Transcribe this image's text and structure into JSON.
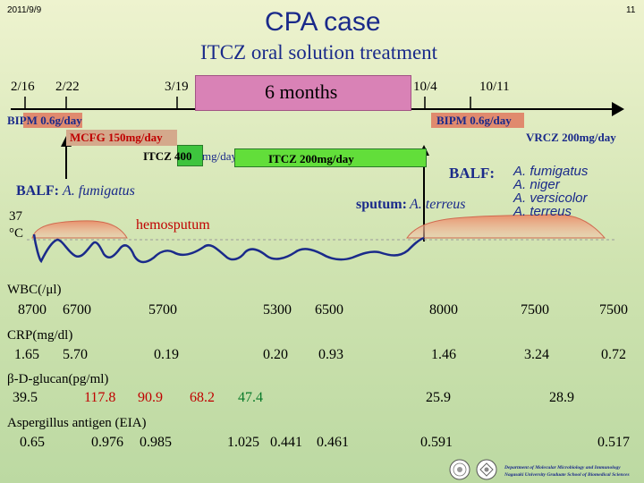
{
  "header": {
    "date": "2011/9/9",
    "page_number": "11",
    "title": "CPA case",
    "subtitle": "ITCZ oral solution treatment"
  },
  "timeline": {
    "dates": [
      "2/16",
      "2/22",
      "3/19",
      "10/4",
      "10/11"
    ],
    "span_label": "6 months"
  },
  "treatments": {
    "bipm_first": "BIPM 0.6g/day",
    "bipm_second": "BIPM 0.6g/day",
    "mcfg": "MCFG 150mg/day",
    "vrcz": "VRCZ 200mg/day",
    "itcz_400_a": "ITCZ 400",
    "itcz_400_b": "mg/day",
    "itcz_200": "ITCZ 200mg/day"
  },
  "findings": {
    "balf1_prefix": "BALF: ",
    "balf1_organism": "A. fumigatus",
    "sputum_prefix": "sputum:",
    "sputum_organism": "A. terreus",
    "balf2_prefix": "BALF:",
    "balf2_organisms": [
      "A. fumigatus",
      "A. niger",
      "A. versicolor",
      "A. terreus"
    ],
    "hemosputum": "hemosputum",
    "temp_value": "37",
    "temp_unit": "°C"
  },
  "labs": {
    "wbc": {
      "label": "WBC(/μl)",
      "values": [
        "8700",
        "6700",
        "5700",
        "5300",
        "6500",
        "8000",
        "7500",
        "7500"
      ]
    },
    "crp": {
      "label": "CRP(mg/dl)",
      "values": [
        "1.65",
        "5.70",
        "0.19",
        "0.20",
        "0.93",
        "1.46",
        "3.24",
        "0.72"
      ]
    },
    "glucan": {
      "label": "β-D-glucan(pg/ml)",
      "values": [
        "39.5",
        "117.8",
        "90.9",
        "68.2",
        "47.4",
        "25.9",
        "28.9"
      ]
    },
    "aspergillus": {
      "label": "Aspergillus antigen (EIA)",
      "values": [
        "0.65",
        "0.976",
        "0.985",
        "1.025",
        "0.441",
        "0.461",
        "0.591",
        "0.517"
      ]
    }
  },
  "footer": {
    "line1": "Department of Molecular Microbiology and Immunology",
    "line2": "Nagasaki University Graduate School of Biomedical Sciences"
  },
  "colors": {
    "bipm": "#e08a6e",
    "mcfg": "#d4a98c",
    "six_months": "#d982b6",
    "itcz400": "#3ec43e",
    "itcz200": "#62de3a",
    "curve_fill": "#e8906a",
    "title_blue": "#1a2a8a"
  }
}
